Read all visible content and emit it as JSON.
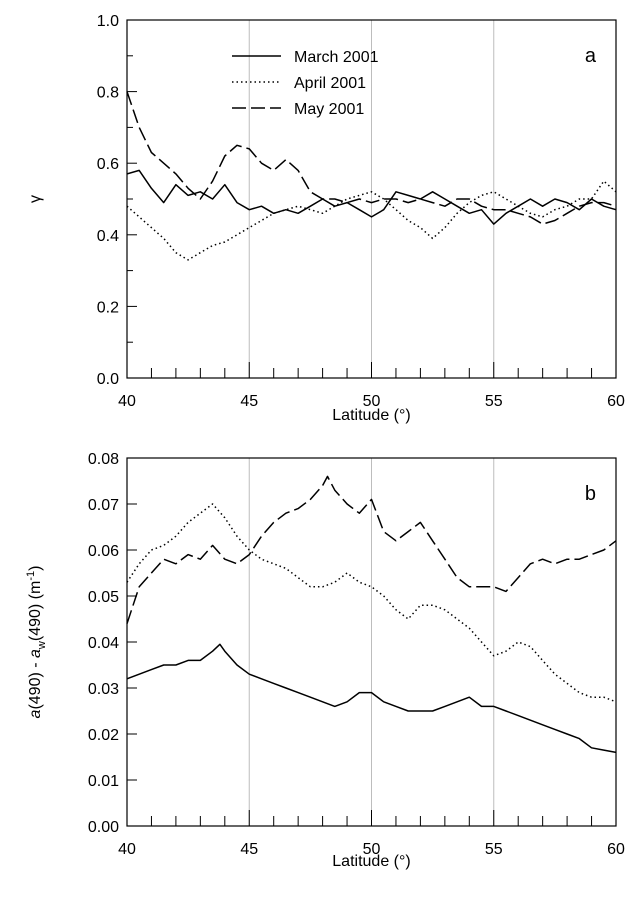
{
  "chart_data": [
    {
      "type": "line",
      "panel": "a",
      "xlabel": "Latitude (°)",
      "ylabel": "γ",
      "xlim": [
        40,
        60
      ],
      "ylim": [
        0,
        1
      ],
      "xticks": [
        "40",
        "45",
        "50",
        "55",
        "60"
      ],
      "yticks": [
        "0.0",
        "0.2",
        "0.4",
        "0.6",
        "0.8",
        "1.0"
      ],
      "vertical_gridlines_at": [
        45,
        50,
        55
      ],
      "legend_position": "top-center",
      "series": [
        {
          "name": "March 2001",
          "style": "solid",
          "points": [
            [
              40,
              0.57
            ],
            [
              40.5,
              0.58
            ],
            [
              41,
              0.53
            ],
            [
              41.5,
              0.49
            ],
            [
              42,
              0.54
            ],
            [
              42.5,
              0.51
            ],
            [
              43,
              0.52
            ],
            [
              43.5,
              0.5
            ],
            [
              44,
              0.54
            ],
            [
              44.5,
              0.49
            ],
            [
              45,
              0.47
            ],
            [
              45.5,
              0.48
            ],
            [
              46,
              0.46
            ],
            [
              46.5,
              0.47
            ],
            [
              47,
              0.46
            ],
            [
              47.5,
              0.48
            ],
            [
              48,
              0.5
            ],
            [
              48.5,
              0.48
            ],
            [
              49,
              0.49
            ],
            [
              49.5,
              0.47
            ],
            [
              50,
              0.45
            ],
            [
              50.5,
              0.47
            ],
            [
              51,
              0.52
            ],
            [
              51.5,
              0.51
            ],
            [
              52,
              0.5
            ],
            [
              52.5,
              0.52
            ],
            [
              53,
              0.5
            ],
            [
              53.5,
              0.48
            ],
            [
              54,
              0.46
            ],
            [
              54.5,
              0.47
            ],
            [
              55,
              0.43
            ],
            [
              55.5,
              0.46
            ],
            [
              56,
              0.48
            ],
            [
              56.5,
              0.5
            ],
            [
              57,
              0.48
            ],
            [
              57.5,
              0.5
            ],
            [
              58,
              0.49
            ],
            [
              58.5,
              0.47
            ],
            [
              59,
              0.5
            ],
            [
              59.5,
              0.48
            ],
            [
              60,
              0.47
            ]
          ]
        },
        {
          "name": "April 2001",
          "style": "dotted",
          "points": [
            [
              40,
              0.48
            ],
            [
              40.5,
              0.45
            ],
            [
              41,
              0.42
            ],
            [
              41.5,
              0.39
            ],
            [
              42,
              0.35
            ],
            [
              42.5,
              0.33
            ],
            [
              43,
              0.35
            ],
            [
              43.5,
              0.37
            ],
            [
              44,
              0.38
            ],
            [
              44.5,
              0.4
            ],
            [
              45,
              0.42
            ],
            [
              45.5,
              0.44
            ],
            [
              46,
              0.46
            ],
            [
              46.5,
              0.47
            ],
            [
              47,
              0.48
            ],
            [
              47.5,
              0.47
            ],
            [
              48,
              0.46
            ],
            [
              48.5,
              0.48
            ],
            [
              49,
              0.5
            ],
            [
              49.5,
              0.51
            ],
            [
              50,
              0.52
            ],
            [
              50.5,
              0.5
            ],
            [
              51,
              0.47
            ],
            [
              51.5,
              0.44
            ],
            [
              52,
              0.42
            ],
            [
              52.5,
              0.39
            ],
            [
              53,
              0.42
            ],
            [
              53.5,
              0.46
            ],
            [
              54,
              0.49
            ],
            [
              54.5,
              0.51
            ],
            [
              55,
              0.52
            ],
            [
              55.5,
              0.5
            ],
            [
              56,
              0.48
            ],
            [
              56.5,
              0.46
            ],
            [
              57,
              0.45
            ],
            [
              57.5,
              0.47
            ],
            [
              58,
              0.48
            ],
            [
              58.5,
              0.5
            ],
            [
              59,
              0.5
            ],
            [
              59.5,
              0.55
            ],
            [
              60,
              0.52
            ]
          ]
        },
        {
          "name": "May 2001",
          "style": "dashed",
          "points": [
            [
              40,
              0.8
            ],
            [
              40.5,
              0.7
            ],
            [
              41,
              0.63
            ],
            [
              41.5,
              0.6
            ],
            [
              42,
              0.57
            ],
            [
              42.5,
              0.53
            ],
            [
              43,
              0.5
            ],
            [
              43.5,
              0.55
            ],
            [
              44,
              0.62
            ],
            [
              44.5,
              0.65
            ],
            [
              45,
              0.64
            ],
            [
              45.5,
              0.6
            ],
            [
              46,
              0.58
            ],
            [
              46.5,
              0.61
            ],
            [
              47,
              0.58
            ],
            [
              47.5,
              0.52
            ],
            [
              48,
              0.5
            ],
            [
              48.5,
              0.5
            ],
            [
              49,
              0.49
            ],
            [
              49.5,
              0.5
            ],
            [
              50,
              0.49
            ],
            [
              50.5,
              0.5
            ],
            [
              51,
              0.5
            ],
            [
              51.5,
              0.49
            ],
            [
              52,
              0.5
            ],
            [
              52.5,
              0.49
            ],
            [
              53,
              0.48
            ],
            [
              53.5,
              0.5
            ],
            [
              54,
              0.5
            ],
            [
              54.5,
              0.48
            ],
            [
              55,
              0.47
            ],
            [
              55.5,
              0.47
            ],
            [
              56,
              0.46
            ],
            [
              56.5,
              0.45
            ],
            [
              57,
              0.43
            ],
            [
              57.5,
              0.44
            ],
            [
              58,
              0.46
            ],
            [
              58.5,
              0.48
            ],
            [
              59,
              0.49
            ],
            [
              59.5,
              0.49
            ],
            [
              60,
              0.48
            ]
          ]
        }
      ]
    },
    {
      "type": "line",
      "panel": "b",
      "xlabel": "Latitude (°)",
      "ylabel_parts": [
        "a",
        "(490) - ",
        "a",
        "w",
        "(490)  (m",
        "-1",
        ")"
      ],
      "xlim": [
        40,
        60
      ],
      "ylim": [
        0,
        0.08
      ],
      "xticks": [
        "40",
        "45",
        "50",
        "55",
        "60"
      ],
      "yticks": [
        "0.00",
        "0.01",
        "0.02",
        "0.03",
        "0.04",
        "0.05",
        "0.06",
        "0.07",
        "0.08"
      ],
      "vertical_gridlines_at": [
        45,
        50,
        55
      ],
      "series": [
        {
          "name": "March 2001",
          "style": "solid",
          "points": [
            [
              40,
              0.032
            ],
            [
              40.5,
              0.033
            ],
            [
              41,
              0.034
            ],
            [
              41.5,
              0.035
            ],
            [
              42,
              0.035
            ],
            [
              42.5,
              0.036
            ],
            [
              43,
              0.036
            ],
            [
              43.5,
              0.038
            ],
            [
              43.8,
              0.0395
            ],
            [
              44,
              0.038
            ],
            [
              44.5,
              0.035
            ],
            [
              45,
              0.033
            ],
            [
              45.5,
              0.032
            ],
            [
              46,
              0.031
            ],
            [
              46.5,
              0.03
            ],
            [
              47,
              0.029
            ],
            [
              47.5,
              0.028
            ],
            [
              48,
              0.027
            ],
            [
              48.5,
              0.026
            ],
            [
              49,
              0.027
            ],
            [
              49.5,
              0.029
            ],
            [
              50,
              0.029
            ],
            [
              50.5,
              0.027
            ],
            [
              51,
              0.026
            ],
            [
              51.5,
              0.025
            ],
            [
              52,
              0.025
            ],
            [
              52.5,
              0.025
            ],
            [
              53,
              0.026
            ],
            [
              53.5,
              0.027
            ],
            [
              54,
              0.028
            ],
            [
              54.5,
              0.026
            ],
            [
              55,
              0.026
            ],
            [
              55.5,
              0.025
            ],
            [
              56,
              0.024
            ],
            [
              56.5,
              0.023
            ],
            [
              57,
              0.022
            ],
            [
              57.5,
              0.021
            ],
            [
              58,
              0.02
            ],
            [
              58.5,
              0.019
            ],
            [
              59,
              0.017
            ],
            [
              59.5,
              0.0165
            ],
            [
              60,
              0.016
            ]
          ]
        },
        {
          "name": "April 2001",
          "style": "dotted",
          "points": [
            [
              40,
              0.053
            ],
            [
              40.5,
              0.057
            ],
            [
              41,
              0.06
            ],
            [
              41.5,
              0.061
            ],
            [
              42,
              0.063
            ],
            [
              42.5,
              0.066
            ],
            [
              43,
              0.068
            ],
            [
              43.5,
              0.07
            ],
            [
              44,
              0.067
            ],
            [
              44.5,
              0.063
            ],
            [
              45,
              0.06
            ],
            [
              45.5,
              0.058
            ],
            [
              46,
              0.057
            ],
            [
              46.5,
              0.056
            ],
            [
              47,
              0.054
            ],
            [
              47.5,
              0.052
            ],
            [
              48,
              0.052
            ],
            [
              48.5,
              0.053
            ],
            [
              49,
              0.055
            ],
            [
              49.5,
              0.053
            ],
            [
              50,
              0.052
            ],
            [
              50.5,
              0.05
            ],
            [
              51,
              0.047
            ],
            [
              51.5,
              0.045
            ],
            [
              52,
              0.048
            ],
            [
              52.5,
              0.048
            ],
            [
              53,
              0.047
            ],
            [
              53.5,
              0.045
            ],
            [
              54,
              0.043
            ],
            [
              54.5,
              0.04
            ],
            [
              55,
              0.037
            ],
            [
              55.5,
              0.038
            ],
            [
              56,
              0.04
            ],
            [
              56.5,
              0.039
            ],
            [
              57,
              0.036
            ],
            [
              57.5,
              0.033
            ],
            [
              58,
              0.031
            ],
            [
              58.5,
              0.029
            ],
            [
              59,
              0.028
            ],
            [
              59.5,
              0.028
            ],
            [
              60,
              0.027
            ]
          ]
        },
        {
          "name": "May 2001",
          "style": "dashed",
          "points": [
            [
              40,
              0.044
            ],
            [
              40.5,
              0.052
            ],
            [
              41,
              0.055
            ],
            [
              41.5,
              0.058
            ],
            [
              42,
              0.057
            ],
            [
              42.5,
              0.059
            ],
            [
              43,
              0.058
            ],
            [
              43.5,
              0.061
            ],
            [
              44,
              0.058
            ],
            [
              44.5,
              0.057
            ],
            [
              45,
              0.059
            ],
            [
              45.5,
              0.063
            ],
            [
              46,
              0.066
            ],
            [
              46.5,
              0.068
            ],
            [
              47,
              0.069
            ],
            [
              47.5,
              0.071
            ],
            [
              48,
              0.074
            ],
            [
              48.2,
              0.076
            ],
            [
              48.5,
              0.073
            ],
            [
              49,
              0.07
            ],
            [
              49.5,
              0.068
            ],
            [
              50,
              0.071
            ],
            [
              50.5,
              0.064
            ],
            [
              51,
              0.062
            ],
            [
              51.5,
              0.064
            ],
            [
              52,
              0.066
            ],
            [
              52.5,
              0.062
            ],
            [
              53,
              0.058
            ],
            [
              53.5,
              0.054
            ],
            [
              54,
              0.052
            ],
            [
              54.5,
              0.052
            ],
            [
              55,
              0.052
            ],
            [
              55.5,
              0.051
            ],
            [
              56,
              0.054
            ],
            [
              56.5,
              0.057
            ],
            [
              57,
              0.058
            ],
            [
              57.5,
              0.057
            ],
            [
              58,
              0.058
            ],
            [
              58.5,
              0.058
            ],
            [
              59,
              0.059
            ],
            [
              59.5,
              0.06
            ],
            [
              60,
              0.062
            ]
          ]
        }
      ]
    }
  ],
  "panels": [
    {
      "label": "a",
      "legend": [
        "March 2001",
        "April 2001",
        "May 2001"
      ]
    },
    {
      "label": "b"
    }
  ]
}
